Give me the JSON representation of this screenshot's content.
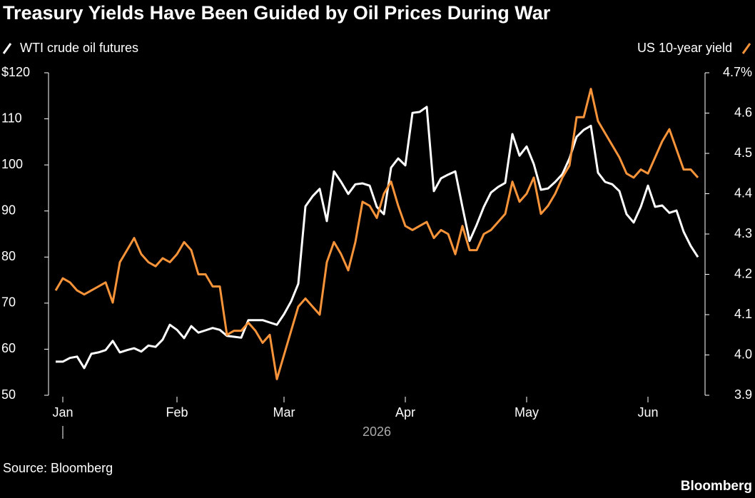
{
  "chart_data": {
    "type": "line",
    "title": "Treasury Yields Have Been Guided by Oil Prices During War",
    "xlabel": "2026",
    "source": "Source: Bloomberg",
    "brand": "Bloomberg",
    "categories": [
      null,
      "Jan",
      null,
      null,
      null,
      null,
      null,
      null,
      null,
      null,
      null,
      null,
      null,
      null,
      null,
      null,
      null,
      "Feb",
      null,
      null,
      null,
      null,
      null,
      null,
      null,
      null,
      null,
      null,
      null,
      null,
      null,
      null,
      "Mar",
      null,
      null,
      null,
      null,
      null,
      null,
      null,
      null,
      null,
      null,
      null,
      null,
      null,
      null,
      null,
      null,
      "Apr",
      null,
      null,
      null,
      null,
      null,
      null,
      null,
      null,
      null,
      null,
      null,
      null,
      null,
      null,
      null,
      null,
      "May",
      null,
      null,
      null,
      null,
      null,
      null,
      null,
      null,
      null,
      null,
      null,
      null,
      null,
      null,
      null,
      null,
      "Jun",
      null,
      null,
      null,
      null,
      null,
      null,
      null
    ],
    "series": [
      {
        "name": "WTI crude oil futures",
        "color": "#ffffff",
        "axis": "y",
        "values": [
          57.3,
          57.3,
          58.1,
          58.4,
          55.9,
          59.0,
          59.3,
          59.8,
          61.8,
          59.3,
          59.8,
          60.2,
          59.5,
          60.8,
          60.5,
          62.1,
          65.3,
          64.2,
          62.4,
          65.0,
          63.6,
          64.1,
          64.6,
          64.2,
          62.9,
          62.7,
          62.5,
          66.3,
          66.3,
          66.3,
          65.8,
          65.3,
          67.6,
          70.4,
          74.2,
          91.0,
          93.2,
          94.8,
          87.8,
          98.6,
          96.3,
          93.7,
          95.8,
          96.0,
          95.5,
          90.9,
          89.3,
          99.4,
          101.4,
          99.9,
          111.3,
          111.5,
          112.6,
          94.3,
          97.1,
          97.9,
          98.6,
          90.9,
          83.5,
          87.0,
          90.9,
          94.0,
          95.2,
          96.1,
          106.7,
          102.0,
          104.0,
          100.2,
          94.6,
          94.9,
          96.3,
          98.0,
          101.4,
          106.1,
          107.6,
          108.5,
          98.3,
          96.3,
          95.8,
          94.3,
          89.3,
          87.5,
          90.9,
          95.5,
          90.9,
          91.2,
          89.6,
          90.1,
          85.5,
          82.4,
          80.0
        ]
      },
      {
        "name": "US 10-year yield",
        "color": "#f7943a",
        "axis": "y2",
        "values": [
          4.16,
          4.19,
          4.18,
          4.16,
          4.15,
          4.16,
          4.17,
          4.18,
          4.13,
          4.23,
          4.26,
          4.29,
          4.25,
          4.23,
          4.22,
          4.24,
          4.23,
          4.25,
          4.28,
          4.26,
          4.2,
          4.2,
          4.17,
          4.17,
          4.05,
          4.06,
          4.06,
          4.08,
          4.06,
          4.03,
          4.05,
          3.94,
          4.0,
          4.06,
          4.12,
          4.14,
          4.12,
          4.1,
          4.23,
          4.28,
          4.25,
          4.21,
          4.28,
          4.38,
          4.37,
          4.34,
          4.4,
          4.43,
          4.37,
          4.32,
          4.31,
          4.32,
          4.33,
          4.29,
          4.31,
          4.3,
          4.25,
          4.32,
          4.26,
          4.26,
          4.3,
          4.31,
          4.33,
          4.35,
          4.43,
          4.38,
          4.4,
          4.44,
          4.35,
          4.37,
          4.4,
          4.44,
          4.47,
          4.59,
          4.59,
          4.66,
          4.58,
          4.55,
          4.52,
          4.49,
          4.45,
          4.44,
          4.46,
          4.45,
          4.49,
          4.53,
          4.56,
          4.51,
          4.46,
          4.46,
          4.44
        ]
      }
    ],
    "ylim": [
      50,
      120
    ],
    "yticks": [
      50,
      60,
      70,
      80,
      90,
      100,
      110,
      {
        "value": 120,
        "label": "$120"
      }
    ],
    "y2lim": [
      3.9,
      4.7
    ],
    "y2ticks": [
      3.9,
      {
        "value": 4,
        "label": "4.0"
      },
      4.1,
      4.2,
      4.3,
      4.4,
      4.5,
      4.6,
      {
        "value": 4.7,
        "label": "4.7%"
      }
    ],
    "grid": false
  }
}
